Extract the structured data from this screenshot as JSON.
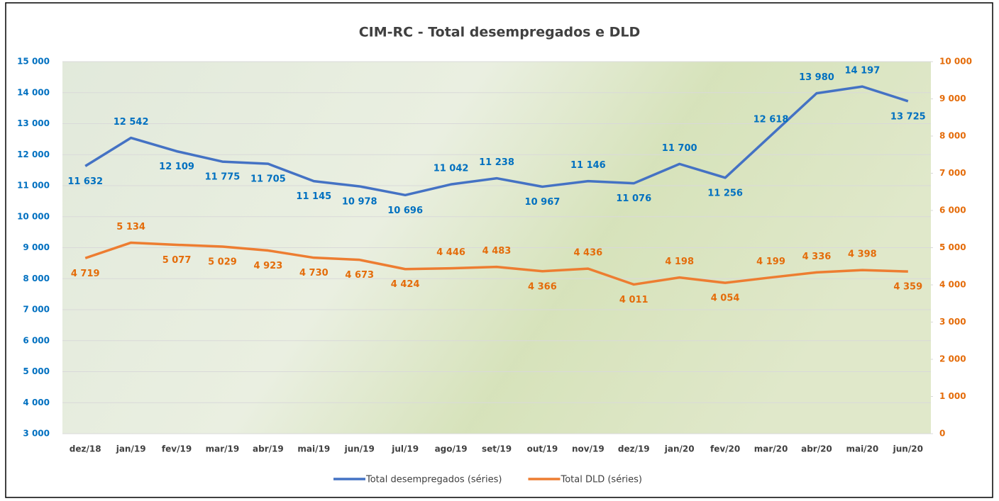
{
  "chart_data": {
    "type": "line",
    "title": "CIM-RC - Total desempregados e DLD",
    "categories": [
      "dez/18",
      "jan/19",
      "fev/19",
      "mar/19",
      "abr/19",
      "mai/19",
      "jun/19",
      "jul/19",
      "ago/19",
      "set/19",
      "out/19",
      "nov/19",
      "dez/19",
      "jan/20",
      "fev/20",
      "mar/20",
      "abr/20",
      "mai/20",
      "jun/20"
    ],
    "series": [
      {
        "name": "Total desempregados (séries)",
        "color": "#4472c4",
        "label_color": "#0070c0",
        "values": [
          11632,
          12542,
          12109,
          11775,
          11705,
          11145,
          10978,
          10696,
          11042,
          11238,
          10967,
          11146,
          11076,
          11700,
          11256,
          12618,
          13980,
          14197,
          13725
        ],
        "value_labels": [
          "11 632",
          "12 542",
          "12 109",
          "11 775",
          "11 705",
          "11 145",
          "10 978",
          "10 696",
          "11 042",
          "11 238",
          "10 967",
          "11 146",
          "11 076",
          "11 700",
          "11 256",
          "12 618",
          "13 980",
          "14 197",
          "13 725"
        ]
      },
      {
        "name": "Total DLD (séries)",
        "color": "#ed7d31",
        "label_color": "#e46c0a",
        "axis": "y2",
        "values": [
          4719,
          5134,
          5077,
          5029,
          4923,
          4730,
          4673,
          4424,
          4446,
          4483,
          4366,
          4436,
          4011,
          4198,
          4054,
          4199,
          4336,
          4398,
          4359
        ],
        "value_labels": [
          "4 719",
          "5 134",
          "5 077",
          "5 029",
          "4 923",
          "4 730",
          "4 673",
          "4 424",
          "4 446",
          "4 483",
          "4 366",
          "4 436",
          "4 011",
          "4 198",
          "4 054",
          "4 199",
          "4 336",
          "4 398",
          "4 359"
        ]
      }
    ],
    "ylim": [
      3000,
      15000
    ],
    "yticks": [
      {
        "value": 3000,
        "label": "3 000"
      },
      {
        "value": 4000,
        "label": "4 000"
      },
      {
        "value": 5000,
        "label": "5 000"
      },
      {
        "value": 6000,
        "label": "6 000"
      },
      {
        "value": 7000,
        "label": "7 000"
      },
      {
        "value": 8000,
        "label": "8 000"
      },
      {
        "value": 9000,
        "label": "9 000"
      },
      {
        "value": 10000,
        "label": "10 000"
      },
      {
        "value": 11000,
        "label": "11 000"
      },
      {
        "value": 12000,
        "label": "12 000"
      },
      {
        "value": 13000,
        "label": "13 000"
      },
      {
        "value": 14000,
        "label": "14 000"
      },
      {
        "value": 15000,
        "label": "15 000"
      }
    ],
    "y2lim": [
      0,
      10000
    ],
    "y2ticks": [
      0,
      {
        "value": 1000,
        "label": "1 000"
      },
      {
        "value": 2000,
        "label": "2 000"
      },
      {
        "value": 3000,
        "label": "3 000"
      },
      {
        "value": 4000,
        "label": "4 000"
      },
      {
        "value": 5000,
        "label": "5 000"
      },
      {
        "value": 6000,
        "label": "6 000"
      },
      {
        "value": 7000,
        "label": "7 000"
      },
      {
        "value": 8000,
        "label": "8 000"
      },
      {
        "value": 9000,
        "label": "9 000"
      },
      {
        "value": 10000,
        "label": "10 000"
      }
    ],
    "grid": true,
    "legend": "bottom"
  }
}
